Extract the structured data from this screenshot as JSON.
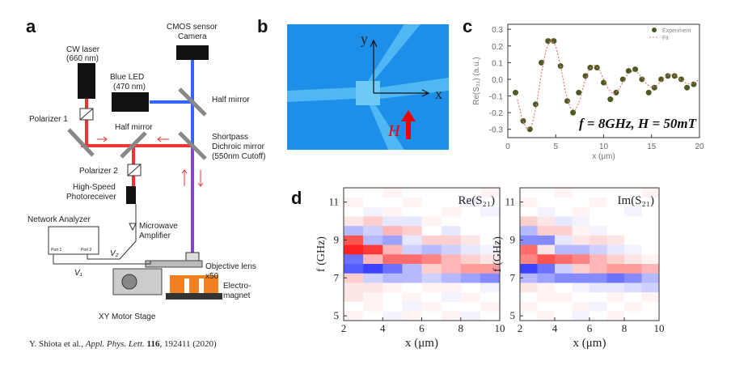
{
  "figure": {
    "panel_labels": [
      "a",
      "b",
      "c",
      "d"
    ],
    "setup": {
      "labels": [
        "CW laser",
        "(660 nm)",
        "CMOS sensor",
        "Camera",
        "Blue LED",
        "(470 nm)",
        "Half mirror",
        "Polarizer 1",
        "Half mirror",
        "Shortpass",
        "Dichroic mirror",
        "(550nm Cutoff)",
        "Polarizer 2",
        "High-Speed",
        "Photoreceiver",
        "Network Analyzer",
        "Microwave",
        "Amplifier",
        "Objective lens",
        "x50",
        "Electro-",
        "magnet",
        "XY Motor Stage",
        "V₂",
        "V₁",
        "Port 1",
        "Port 2"
      ]
    },
    "image": {
      "labels": [
        "y",
        "x",
        "H"
      ]
    },
    "citation": {
      "authors": "Y. Shiota et al., ",
      "journal": "Appl. Phys. Lett.",
      "volume": " 116",
      "rest": ", 192411 (2020)"
    }
  },
  "chart_data": [
    {
      "type": "scatter",
      "y_label": "Re(S₂₁) (a.u.)",
      "x_label": "x (μm)",
      "annotation": "f = 8GHz, H = 50mT",
      "xlim": [
        0,
        20
      ],
      "xticks": [
        0,
        5,
        10,
        15,
        20
      ],
      "ylim": [
        -0.35,
        0.33
      ],
      "yticks": [
        -0.3,
        -0.2,
        -0.1,
        {
          "value": 0,
          "label": "0.0"
        },
        0.1,
        0.2,
        0.3
      ],
      "legend": "upper right",
      "series": [
        {
          "name": "Experiment",
          "color": "#4b5a22",
          "mode": "markers",
          "x": [
            0.8,
            1.6,
            2.3,
            2.9,
            3.5,
            4.2,
            4.8,
            5.5,
            6.2,
            6.8,
            7.4,
            8.1,
            8.6,
            9.3,
            10,
            10.7,
            11.3,
            12,
            12.6,
            13.3,
            14,
            14.7,
            15.3,
            16,
            16.7,
            17.4,
            18.1,
            18.7,
            19.4
          ],
          "values": [
            -0.08,
            -0.25,
            -0.3,
            -0.15,
            0.1,
            0.23,
            0.23,
            0.08,
            -0.13,
            -0.2,
            -0.08,
            0.02,
            0.07,
            0.07,
            -0.02,
            -0.12,
            -0.08,
            0,
            0.05,
            0.06,
            0,
            -0.08,
            -0.05,
            0,
            0.02,
            0.02,
            0,
            -0.05,
            -0.03
          ]
        },
        {
          "name": "Fit",
          "color": "#e07a7a",
          "mode": "line",
          "x": [
            1,
            1.5,
            2,
            2.5,
            3,
            3.5,
            4,
            4.5,
            5,
            5.5,
            6,
            6.5,
            7,
            7.5,
            8,
            8.5,
            9,
            9.5,
            10,
            10.5,
            11,
            11.5,
            12,
            12.5,
            13,
            13.5,
            14,
            14.5,
            15,
            15.5,
            16,
            16.5,
            17,
            17.5,
            18,
            18.5,
            19,
            19.5,
            20
          ],
          "values": [
            -0.12,
            -0.24,
            -0.3,
            -0.28,
            -0.15,
            0.03,
            0.18,
            0.24,
            0.2,
            0.08,
            -0.07,
            -0.17,
            -0.19,
            -0.13,
            -0.02,
            0.06,
            0.09,
            0.06,
            0,
            -0.06,
            -0.09,
            -0.07,
            -0.02,
            0.03,
            0.05,
            0.04,
            0.01,
            -0.03,
            -0.05,
            -0.04,
            -0.01,
            0.02,
            0.03,
            0.02,
            0,
            -0.02,
            -0.03,
            -0.02,
            0
          ]
        }
      ]
    },
    {
      "type": "heatmap",
      "title": "Re(S₂₁)",
      "x_label": "x (μm)",
      "y_label": "f (GHz)",
      "xlim": [
        2,
        10
      ],
      "xticks": [
        2,
        4,
        6,
        8,
        10
      ],
      "ylim": [
        4.75,
        11.75
      ],
      "yticks": [
        5,
        7,
        9,
        11
      ],
      "clim": [
        -1,
        1
      ],
      "colors": {
        "low": "#0a14ff",
        "mid": "#ffffff",
        "high": "#ff0a0a"
      },
      "x": [
        2.5,
        3.5,
        4.5,
        5.5,
        6.5,
        7.5,
        8.5,
        9.5
      ],
      "y": [
        5,
        5.5,
        6,
        6.5,
        7,
        7.5,
        8,
        8.5,
        9,
        9.5,
        10,
        10.5,
        11,
        11.5
      ],
      "values": [
        [
          0.05,
          0,
          -0.05,
          0.05,
          0,
          0.05,
          -0.05,
          0
        ],
        [
          0,
          0.05,
          0,
          -0.05,
          0.05,
          0,
          0,
          0.05
        ],
        [
          0.1,
          0.05,
          0,
          0.05,
          0,
          -0.05,
          0.05,
          0
        ],
        [
          0.1,
          0.1,
          0.05,
          0,
          0.05,
          0.05,
          0,
          -0.05
        ],
        [
          0.2,
          -0.2,
          -0.3,
          -0.3,
          -0.2,
          -0.3,
          -0.4,
          -0.5
        ],
        [
          -0.7,
          -0.8,
          -0.6,
          -0.3,
          0.2,
          0.3,
          0.4,
          0.4
        ],
        [
          -0.6,
          0.3,
          0.6,
          0.6,
          0.5,
          0.3,
          0.2,
          0.1
        ],
        [
          0.9,
          0.8,
          0.3,
          -0.2,
          -0.3,
          -0.2,
          -0.1,
          -0.05
        ],
        [
          0.7,
          -0.3,
          -0.4,
          -0.1,
          0.2,
          0.2,
          0.1,
          0
        ],
        [
          -0.3,
          -0.2,
          0.3,
          0.2,
          0,
          -0.1,
          0,
          0
        ],
        [
          0.1,
          0.2,
          -0.1,
          -0.1,
          0.05,
          0,
          0,
          0
        ],
        [
          0,
          -0.05,
          0.05,
          0,
          0,
          0.05,
          0,
          -0.05
        ],
        [
          0.05,
          0,
          0,
          0.05,
          0,
          0,
          -0.05,
          0
        ],
        [
          0,
          0,
          0.05,
          0,
          0,
          0,
          0,
          0.05
        ]
      ]
    },
    {
      "type": "heatmap",
      "title": "Im(S₂₁)",
      "x_label": "x (μm)",
      "y_label": "f (GHz)",
      "xlim": [
        2,
        10
      ],
      "xticks": [
        2,
        4,
        6,
        8,
        10
      ],
      "ylim": [
        4.75,
        11.75
      ],
      "yticks": [
        5,
        7,
        9,
        11
      ],
      "clim": [
        -1,
        1
      ],
      "colors": {
        "low": "#0a14ff",
        "mid": "#ffffff",
        "high": "#ff0a0a"
      },
      "x": [
        2.5,
        3.5,
        4.5,
        5.5,
        6.5,
        7.5,
        8.5,
        9.5
      ],
      "y": [
        5,
        5.5,
        6,
        6.5,
        7,
        7.5,
        8,
        8.5,
        9,
        9.5,
        10,
        10.5,
        11,
        11.5
      ],
      "values": [
        [
          0,
          0.05,
          0,
          -0.05,
          0,
          0.05,
          0,
          0
        ],
        [
          0.05,
          0,
          0,
          0.05,
          -0.05,
          0,
          0.05,
          0
        ],
        [
          0,
          0.05,
          0.05,
          0,
          0,
          0.05,
          0,
          0.05
        ],
        [
          0.1,
          0.05,
          0,
          -0.05,
          -0.1,
          -0.1,
          -0.15,
          -0.2
        ],
        [
          -0.3,
          -0.4,
          -0.5,
          -0.5,
          -0.5,
          -0.6,
          -0.5,
          -0.3
        ],
        [
          -0.8,
          -0.6,
          -0.2,
          0.2,
          0.3,
          0.4,
          0.4,
          0.3
        ],
        [
          0.5,
          0.7,
          0.6,
          0.5,
          0.3,
          0.2,
          0.1,
          0.05
        ],
        [
          0.6,
          0.1,
          -0.3,
          -0.3,
          -0.2,
          -0.1,
          -0.05,
          0
        ],
        [
          -0.5,
          -0.5,
          -0.1,
          0.1,
          0.15,
          0.1,
          0,
          0
        ],
        [
          -0.3,
          0.2,
          0.2,
          0.05,
          -0.05,
          0,
          0,
          0
        ],
        [
          0.2,
          0.1,
          -0.1,
          -0.05,
          0,
          0,
          0,
          0
        ],
        [
          0,
          -0.05,
          0,
          0.05,
          0,
          0,
          -0.05,
          0
        ],
        [
          0.05,
          0,
          0,
          0,
          0.05,
          0,
          0,
          0
        ],
        [
          0,
          0,
          0.05,
          0,
          0,
          0,
          0,
          0.05
        ]
      ]
    }
  ]
}
